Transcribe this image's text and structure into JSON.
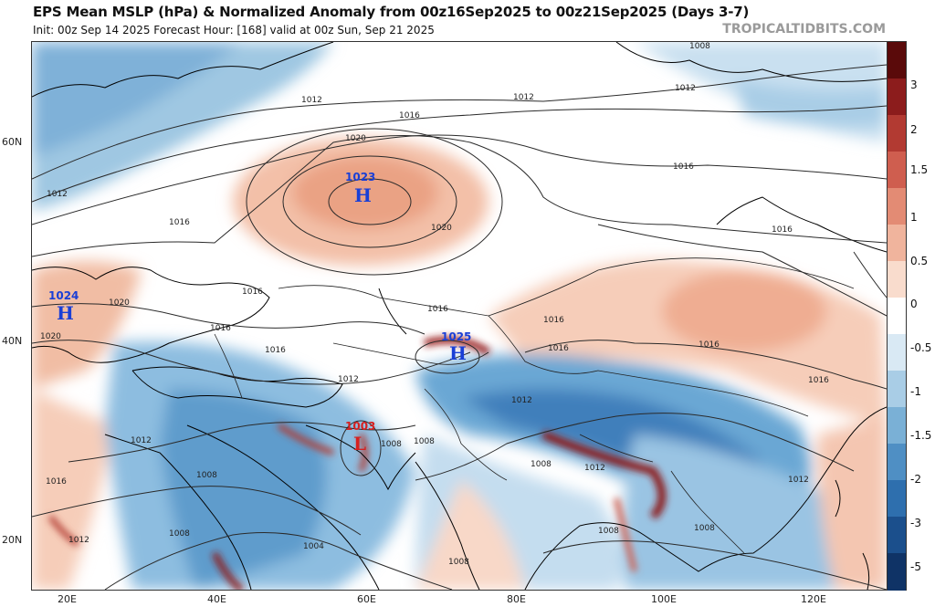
{
  "header": {
    "title": "EPS Mean MSLP (hPa) & Normalized Anomaly from 00z16Sep2025 to 00z21Sep2025 (Days 3-7)",
    "subtitle": "Init: 00z Sep 14 2025   Forecast Hour: [168]   valid at 00z Sun, Sep 21 2025",
    "site": "TROPICALTIDBITS.COM"
  },
  "axes": {
    "lat_labels": [
      "60N",
      "40N",
      "20N"
    ],
    "lon_labels": [
      "20E",
      "40E",
      "60E",
      "80E",
      "100E",
      "120E"
    ]
  },
  "colorbar": {
    "labels": [
      "3",
      "2",
      "1.5",
      "1",
      "0.5",
      "0",
      "-0.5",
      "-1",
      "-1.5",
      "-2",
      "-3",
      "-5"
    ],
    "colors": [
      "#5a0a0a",
      "#8c1c1c",
      "#b23a32",
      "#cf5e4f",
      "#e38b74",
      "#f0b49d",
      "#f9dccd",
      "#ffffff",
      "#d9e9f4",
      "#a9cde6",
      "#7ab0d6",
      "#4f8fc4",
      "#2e6fae",
      "#1b4f8c",
      "#0f3366"
    ]
  },
  "pressure_centers": [
    {
      "type": "H",
      "value": "1023",
      "color": "#1a3fd6"
    },
    {
      "type": "H",
      "value": "1024",
      "color": "#1a3fd6"
    },
    {
      "type": "H",
      "value": "1025",
      "color": "#1a3fd6"
    },
    {
      "type": "L",
      "value": "1003",
      "color": "#d62020"
    }
  ],
  "isobar_labels": [
    "1008",
    "1012",
    "1016",
    "1020",
    "1004"
  ]
}
